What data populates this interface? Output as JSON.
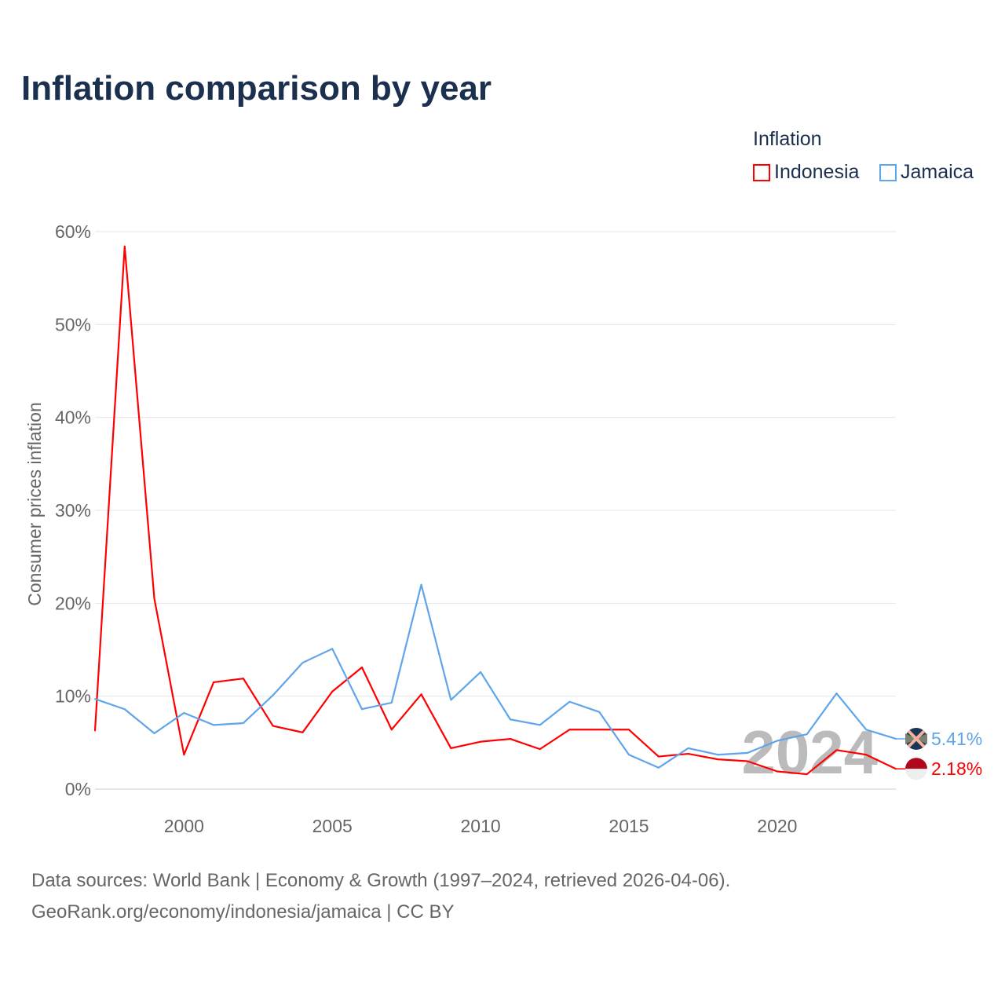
{
  "chart_data": {
    "type": "line",
    "title": "Inflation comparison by year",
    "ylabel": "Consumer prices inflation",
    "xlabel": "",
    "legend_title": "Inflation",
    "legend_position": "top-right",
    "x": [
      1997,
      1998,
      1999,
      2000,
      2001,
      2002,
      2003,
      2004,
      2005,
      2006,
      2007,
      2008,
      2009,
      2010,
      2011,
      2012,
      2013,
      2014,
      2015,
      2016,
      2017,
      2018,
      2019,
      2020,
      2021,
      2022,
      2023,
      2024
    ],
    "xlim": [
      1997,
      2024
    ],
    "ylim": [
      0,
      60
    ],
    "x_ticks": [
      2000,
      2005,
      2010,
      2015,
      2020
    ],
    "y_ticks": [
      0,
      10,
      20,
      30,
      40,
      50,
      60
    ],
    "y_tick_labels": [
      "0%",
      "10%",
      "20%",
      "30%",
      "40%",
      "50%",
      "60%"
    ],
    "grid": true,
    "watermark_year": "2024",
    "series": [
      {
        "name": "Indonesia",
        "color": "#ff0000",
        "end_label": "2.18%",
        "values": [
          6.3,
          58.4,
          20.5,
          3.7,
          11.5,
          11.9,
          6.8,
          6.1,
          10.5,
          13.1,
          6.4,
          10.2,
          4.4,
          5.1,
          5.4,
          4.3,
          6.4,
          6.4,
          6.4,
          3.5,
          3.8,
          3.2,
          3.0,
          1.9,
          1.6,
          4.2,
          3.7,
          2.18
        ]
      },
      {
        "name": "Jamaica",
        "color": "#5ea5ea",
        "end_label": "5.41%",
        "values": [
          9.7,
          8.6,
          6.0,
          8.2,
          6.9,
          7.1,
          10.1,
          13.6,
          15.1,
          8.6,
          9.3,
          22.0,
          9.6,
          12.6,
          7.5,
          6.9,
          9.4,
          8.3,
          3.7,
          2.3,
          4.4,
          3.7,
          3.9,
          5.2,
          5.9,
          10.3,
          6.4,
          5.41
        ]
      }
    ]
  },
  "footer": {
    "line1": "Data sources: World Bank | Economy & Growth (1997–2024, retrieved 2026-04-06).",
    "line2": "GeoRank.org/economy/indonesia/jamaica | CC BY"
  }
}
